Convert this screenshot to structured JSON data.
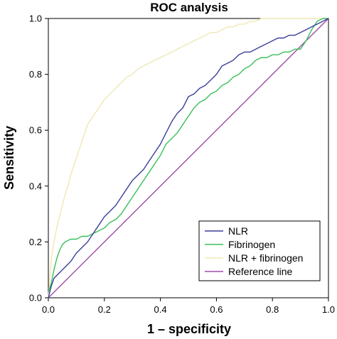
{
  "chart_data": {
    "type": "line",
    "title": "ROC analysis",
    "xlabel": "1 – specificity",
    "ylabel": "Sensitivity",
    "xlim": [
      0,
      1
    ],
    "ylim": [
      0,
      1
    ],
    "x_ticks": [
      "0.0",
      "0.2",
      "0.4",
      "0.6",
      "0.8",
      "1.0"
    ],
    "y_ticks": [
      "0.0",
      "0.2",
      "0.4",
      "0.6",
      "0.8",
      "1.0"
    ],
    "grid": false,
    "legend_position": "bottom-right",
    "series": [
      {
        "name": "NLR",
        "color": "#3b3f9a",
        "x": [
          0.0,
          0.01,
          0.02,
          0.04,
          0.06,
          0.08,
          0.1,
          0.12,
          0.14,
          0.16,
          0.18,
          0.2,
          0.22,
          0.24,
          0.26,
          0.28,
          0.3,
          0.32,
          0.34,
          0.36,
          0.38,
          0.4,
          0.42,
          0.44,
          0.46,
          0.48,
          0.5,
          0.52,
          0.54,
          0.56,
          0.58,
          0.6,
          0.62,
          0.64,
          0.66,
          0.68,
          0.7,
          0.72,
          0.74,
          0.76,
          0.78,
          0.8,
          0.82,
          0.84,
          0.86,
          0.88,
          0.9,
          0.92,
          0.94,
          0.96,
          0.98,
          1.0
        ],
        "y": [
          0.0,
          0.04,
          0.07,
          0.09,
          0.11,
          0.13,
          0.16,
          0.18,
          0.2,
          0.23,
          0.26,
          0.29,
          0.31,
          0.33,
          0.36,
          0.39,
          0.42,
          0.44,
          0.46,
          0.49,
          0.52,
          0.55,
          0.59,
          0.63,
          0.66,
          0.68,
          0.72,
          0.73,
          0.75,
          0.76,
          0.78,
          0.8,
          0.83,
          0.84,
          0.85,
          0.87,
          0.88,
          0.88,
          0.89,
          0.9,
          0.91,
          0.92,
          0.93,
          0.93,
          0.94,
          0.94,
          0.95,
          0.96,
          0.97,
          0.98,
          0.99,
          1.0
        ]
      },
      {
        "name": "Fibrinogen",
        "color": "#3bbf5a",
        "x": [
          0.0,
          0.01,
          0.02,
          0.03,
          0.04,
          0.05,
          0.06,
          0.08,
          0.1,
          0.12,
          0.14,
          0.16,
          0.18,
          0.2,
          0.22,
          0.24,
          0.26,
          0.28,
          0.3,
          0.32,
          0.34,
          0.36,
          0.38,
          0.4,
          0.42,
          0.44,
          0.46,
          0.48,
          0.5,
          0.52,
          0.54,
          0.56,
          0.58,
          0.6,
          0.62,
          0.64,
          0.66,
          0.68,
          0.7,
          0.72,
          0.74,
          0.76,
          0.78,
          0.8,
          0.82,
          0.84,
          0.86,
          0.88,
          0.9,
          0.92,
          0.94,
          0.96,
          0.98,
          1.0
        ],
        "y": [
          0.02,
          0.05,
          0.1,
          0.14,
          0.17,
          0.19,
          0.2,
          0.21,
          0.21,
          0.22,
          0.22,
          0.23,
          0.24,
          0.25,
          0.27,
          0.28,
          0.3,
          0.33,
          0.36,
          0.39,
          0.42,
          0.45,
          0.48,
          0.51,
          0.55,
          0.57,
          0.59,
          0.62,
          0.65,
          0.68,
          0.7,
          0.71,
          0.73,
          0.74,
          0.76,
          0.77,
          0.79,
          0.8,
          0.82,
          0.83,
          0.85,
          0.86,
          0.86,
          0.87,
          0.87,
          0.88,
          0.88,
          0.89,
          0.89,
          0.92,
          0.96,
          0.99,
          1.0,
          1.0
        ]
      },
      {
        "name": "NLR + fibrinogen",
        "color": "#f0e8b4",
        "x": [
          0.0,
          0.005,
          0.01,
          0.015,
          0.02,
          0.03,
          0.04,
          0.05,
          0.06,
          0.07,
          0.08,
          0.09,
          0.1,
          0.11,
          0.12,
          0.13,
          0.14,
          0.16,
          0.18,
          0.2,
          0.22,
          0.24,
          0.26,
          0.28,
          0.3,
          0.32,
          0.34,
          0.36,
          0.38,
          0.4,
          0.42,
          0.44,
          0.46,
          0.48,
          0.5,
          0.52,
          0.54,
          0.56,
          0.58,
          0.6,
          0.62,
          0.64,
          0.66,
          0.68,
          0.7,
          0.72,
          0.74,
          0.76,
          0.8,
          0.85,
          0.9,
          0.95,
          1.0
        ],
        "y": [
          0.0,
          0.07,
          0.13,
          0.17,
          0.2,
          0.25,
          0.29,
          0.33,
          0.37,
          0.4,
          0.44,
          0.47,
          0.5,
          0.53,
          0.56,
          0.59,
          0.62,
          0.65,
          0.68,
          0.71,
          0.73,
          0.75,
          0.77,
          0.79,
          0.8,
          0.82,
          0.83,
          0.84,
          0.85,
          0.86,
          0.87,
          0.88,
          0.89,
          0.9,
          0.91,
          0.92,
          0.93,
          0.94,
          0.95,
          0.95,
          0.96,
          0.97,
          0.97,
          0.98,
          0.98,
          0.99,
          0.99,
          1.0,
          1.0,
          1.0,
          1.0,
          1.0,
          1.0
        ]
      },
      {
        "name": "Reference line",
        "color": "#a04ba8",
        "x": [
          0,
          1
        ],
        "y": [
          0,
          1
        ]
      }
    ]
  }
}
